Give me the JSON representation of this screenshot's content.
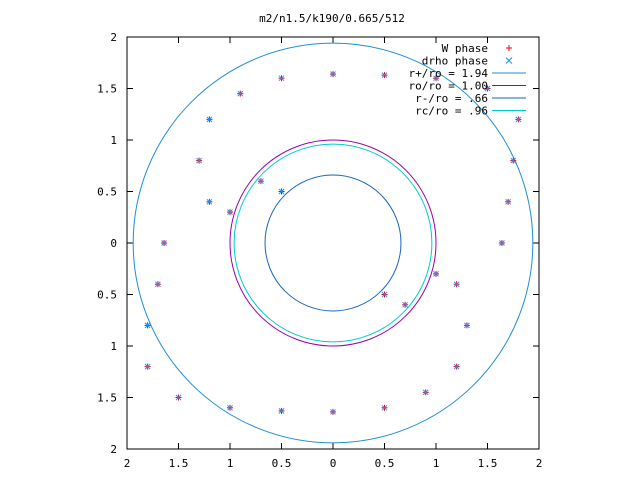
{
  "chart_data": {
    "type": "scatter",
    "title": "m2/n1.5/k190/0.665/512",
    "xlabel": "",
    "ylabel": "",
    "xlim": [
      -2,
      2
    ],
    "ylim": [
      -2,
      2
    ],
    "x_ticks": [
      -2,
      -1.5,
      -1,
      -0.5,
      0,
      0.5,
      1,
      1.5,
      2
    ],
    "y_ticks": [
      -2,
      -1.5,
      -1,
      -0.5,
      0,
      0.5,
      1,
      1.5,
      2
    ],
    "x_tick_labels": [
      "2",
      "1.5",
      "1",
      "0.5",
      "0",
      "0.5",
      "1",
      "1.5",
      "2"
    ],
    "y_tick_labels": [
      "2",
      "1.5",
      "1",
      "0.5",
      "0",
      "0.5",
      "1",
      "1.5",
      "2"
    ],
    "grid": false,
    "legend_position": "top-right",
    "series": [
      {
        "name": "W phase",
        "marker": "+",
        "color": "#ff0000",
        "points": [
          [
            1.64,
            0.0
          ],
          [
            1.7,
            0.4
          ],
          [
            1.75,
            0.8
          ],
          [
            1.8,
            1.2
          ],
          [
            1.5,
            1.5
          ],
          [
            1.0,
            1.6
          ],
          [
            0.5,
            1.63
          ],
          [
            0.0,
            1.64
          ],
          [
            -0.5,
            1.6
          ],
          [
            -0.9,
            1.45
          ],
          [
            -1.2,
            1.2
          ],
          [
            -1.3,
            0.8
          ],
          [
            -1.2,
            0.4
          ],
          [
            -1.0,
            0.3
          ],
          [
            -0.7,
            0.6
          ],
          [
            -0.5,
            0.5
          ],
          [
            -1.64,
            0.0
          ],
          [
            -1.7,
            -0.4
          ],
          [
            -1.8,
            -0.8
          ],
          [
            -1.8,
            -1.2
          ],
          [
            -1.5,
            -1.5
          ],
          [
            -1.0,
            -1.6
          ],
          [
            -0.5,
            -1.63
          ],
          [
            0.0,
            -1.64
          ],
          [
            0.5,
            -1.6
          ],
          [
            0.9,
            -1.45
          ],
          [
            1.2,
            -1.2
          ],
          [
            1.3,
            -0.8
          ],
          [
            1.2,
            -0.4
          ],
          [
            1.0,
            -0.3
          ],
          [
            0.7,
            -0.6
          ],
          [
            0.5,
            -0.5
          ]
        ]
      },
      {
        "name": "drho phase",
        "marker": "x",
        "color": "#1e90ff",
        "points": []
      }
    ],
    "circles": [
      {
        "name": "r+/ro = 1.94",
        "radius": 1.94,
        "color": "#1e8fd6"
      },
      {
        "name": "ro/ro = 1.00",
        "radius": 1.0,
        "color": "#9900aa"
      },
      {
        "name": "r-/ro = .66",
        "radius": 0.66,
        "color": "#1565c0"
      },
      {
        "name": "rc/ro = .96",
        "radius": 0.96,
        "color": "#00cccc"
      }
    ]
  }
}
